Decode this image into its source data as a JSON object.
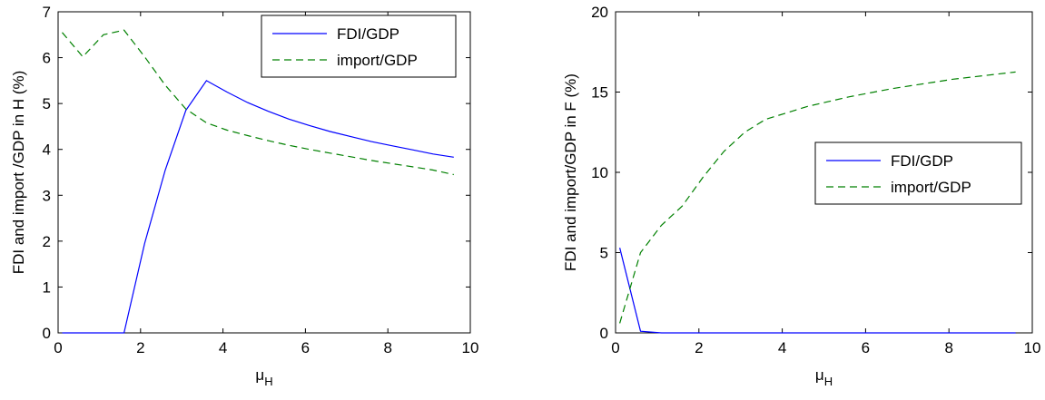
{
  "chart_data": [
    {
      "type": "line",
      "xlabel": "μ",
      "xlabel_subscript": "H",
      "ylabel": "FDI and import /GDP in H (%)",
      "xlim": [
        0,
        10
      ],
      "ylim": [
        0,
        7
      ],
      "xticks": [
        0,
        2,
        4,
        6,
        8,
        10
      ],
      "yticks": [
        0,
        1,
        2,
        3,
        4,
        5,
        6,
        7
      ],
      "grid": false,
      "legend_position": "top-right",
      "series": [
        {
          "name": "FDI/GDP",
          "style": "solid",
          "color": "#0000ff",
          "x": [
            0.1,
            0.6,
            1.1,
            1.6,
            2.1,
            2.6,
            3.1,
            3.6,
            4.1,
            4.6,
            5.1,
            5.6,
            6.1,
            6.6,
            7.1,
            7.6,
            8.1,
            8.6,
            9.1,
            9.6
          ],
          "y": [
            0,
            0,
            0,
            0,
            1.95,
            3.55,
            4.85,
            5.5,
            5.25,
            5.02,
            4.83,
            4.66,
            4.52,
            4.39,
            4.28,
            4.17,
            4.08,
            3.99,
            3.9,
            3.83
          ]
        },
        {
          "name": "import/GDP",
          "style": "dashed",
          "color": "#008000",
          "x": [
            0.1,
            0.6,
            1.1,
            1.6,
            2.1,
            2.6,
            3.1,
            3.6,
            4.1,
            4.6,
            5.1,
            5.6,
            6.1,
            6.6,
            7.1,
            7.6,
            8.1,
            8.6,
            9.1,
            9.6
          ],
          "y": [
            6.55,
            6.02,
            6.5,
            6.6,
            6.02,
            5.4,
            4.88,
            4.58,
            4.42,
            4.3,
            4.19,
            4.09,
            4.0,
            3.92,
            3.84,
            3.76,
            3.69,
            3.62,
            3.55,
            3.45
          ]
        }
      ]
    },
    {
      "type": "line",
      "xlabel": "μ",
      "xlabel_subscript": "H",
      "ylabel": "FDI and import/GDP in F (%)",
      "xlim": [
        0,
        10
      ],
      "ylim": [
        0,
        20
      ],
      "xticks": [
        0,
        2,
        4,
        6,
        8,
        10
      ],
      "yticks": [
        0,
        5,
        10,
        15,
        20
      ],
      "grid": false,
      "legend_position": "right",
      "series": [
        {
          "name": "FDI/GDP",
          "style": "solid",
          "color": "#0000ff",
          "x": [
            0.1,
            0.6,
            1.1,
            1.6,
            2.1,
            2.6,
            3.1,
            3.6,
            4.1,
            4.6,
            5.1,
            5.6,
            6.1,
            6.6,
            7.1,
            7.6,
            8.1,
            8.6,
            9.1,
            9.6
          ],
          "y": [
            5.3,
            0.1,
            0,
            0,
            0,
            0,
            0,
            0,
            0,
            0,
            0,
            0,
            0,
            0,
            0,
            0,
            0,
            0,
            0,
            0
          ]
        },
        {
          "name": "import/GDP",
          "style": "dashed",
          "color": "#008000",
          "x": [
            0.1,
            0.6,
            1.1,
            1.6,
            2.1,
            2.6,
            3.1,
            3.6,
            4.1,
            4.6,
            5.1,
            5.6,
            6.1,
            6.6,
            7.1,
            7.6,
            8.1,
            8.6,
            9.1,
            9.6
          ],
          "y": [
            0.6,
            5.0,
            6.7,
            7.9,
            9.7,
            11.3,
            12.5,
            13.3,
            13.7,
            14.1,
            14.4,
            14.7,
            14.95,
            15.2,
            15.4,
            15.6,
            15.8,
            15.95,
            16.1,
            16.25
          ]
        }
      ]
    }
  ]
}
